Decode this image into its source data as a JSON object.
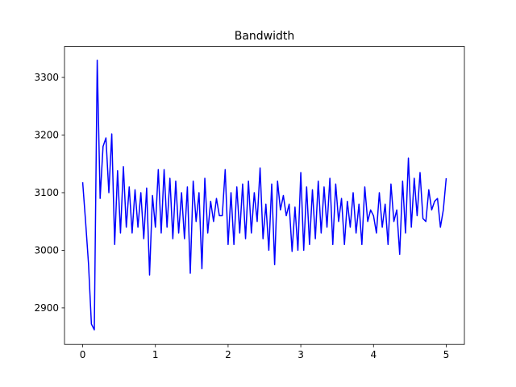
{
  "chart_data": {
    "type": "line",
    "title": "Bandwidth",
    "x": [
      0,
      0.04,
      0.08,
      0.12,
      0.16,
      0.2,
      0.24,
      0.28,
      0.32,
      0.36,
      0.4,
      0.44,
      0.48,
      0.52,
      0.56,
      0.6,
      0.64,
      0.68,
      0.72,
      0.76,
      0.8,
      0.84,
      0.88,
      0.92,
      0.96,
      1.0,
      1.04,
      1.08,
      1.12,
      1.16,
      1.2,
      1.24,
      1.28,
      1.32,
      1.36,
      1.4,
      1.44,
      1.48,
      1.52,
      1.56,
      1.6,
      1.64,
      1.68,
      1.72,
      1.76,
      1.8,
      1.84,
      1.88,
      1.92,
      1.96,
      2.0,
      2.04,
      2.08,
      2.12,
      2.16,
      2.2,
      2.24,
      2.28,
      2.32,
      2.36,
      2.4,
      2.44,
      2.48,
      2.52,
      2.56,
      2.6,
      2.64,
      2.68,
      2.72,
      2.76,
      2.8,
      2.84,
      2.88,
      2.92,
      2.96,
      3.0,
      3.04,
      3.08,
      3.12,
      3.16,
      3.2,
      3.24,
      3.28,
      3.32,
      3.36,
      3.4,
      3.44,
      3.48,
      3.52,
      3.56,
      3.6,
      3.64,
      3.68,
      3.72,
      3.76,
      3.8,
      3.84,
      3.88,
      3.92,
      3.96,
      4.0,
      4.04,
      4.08,
      4.12,
      4.16,
      4.2,
      4.24,
      4.28,
      4.32,
      4.36,
      4.4,
      4.44,
      4.48,
      4.52,
      4.56,
      4.6,
      4.64,
      4.68,
      4.72,
      4.76,
      4.8,
      4.84,
      4.88,
      4.92,
      4.96,
      5.0
    ],
    "series": [
      {
        "color": "#0000ff",
        "values": [
          3118,
          3050,
          2977,
          2872,
          2862,
          3330,
          3090,
          3180,
          3195,
          3100,
          3202,
          3010,
          3138,
          3030,
          3145,
          3040,
          3110,
          3030,
          3105,
          3040,
          3100,
          3020,
          3108,
          2957,
          3095,
          3040,
          3140,
          3030,
          3140,
          3040,
          3125,
          3020,
          3120,
          3030,
          3100,
          3020,
          3110,
          2960,
          3120,
          3050,
          3100,
          2968,
          3125,
          3030,
          3085,
          3050,
          3090,
          3060,
          3060,
          3140,
          3010,
          3100,
          3010,
          3110,
          3030,
          3115,
          3020,
          3120,
          3030,
          3100,
          3050,
          3143,
          3020,
          3080,
          3000,
          3115,
          2975,
          3120,
          3070,
          3095,
          3060,
          3080,
          2998,
          3075,
          3000,
          3135,
          3000,
          3110,
          3010,
          3105,
          3020,
          3120,
          3030,
          3110,
          3040,
          3125,
          3010,
          3115,
          3050,
          3090,
          3010,
          3085,
          3040,
          3100,
          3030,
          3080,
          3010,
          3110,
          3050,
          3070,
          3060,
          3030,
          3100,
          3040,
          3080,
          3010,
          3115,
          3050,
          3070,
          2993,
          3120,
          3030,
          3160,
          3040,
          3125,
          3060,
          3135,
          3055,
          3050,
          3105,
          3070,
          3085,
          3090,
          3040,
          3070,
          3125
        ]
      }
    ],
    "xlim": [
      -0.25,
      5.25
    ],
    "xticks": [
      0,
      1,
      2,
      3,
      4,
      5
    ],
    "ylim": [
      2836.6,
      3353.8
    ],
    "yticks": [
      2900,
      3000,
      3100,
      3200,
      3300
    ]
  }
}
